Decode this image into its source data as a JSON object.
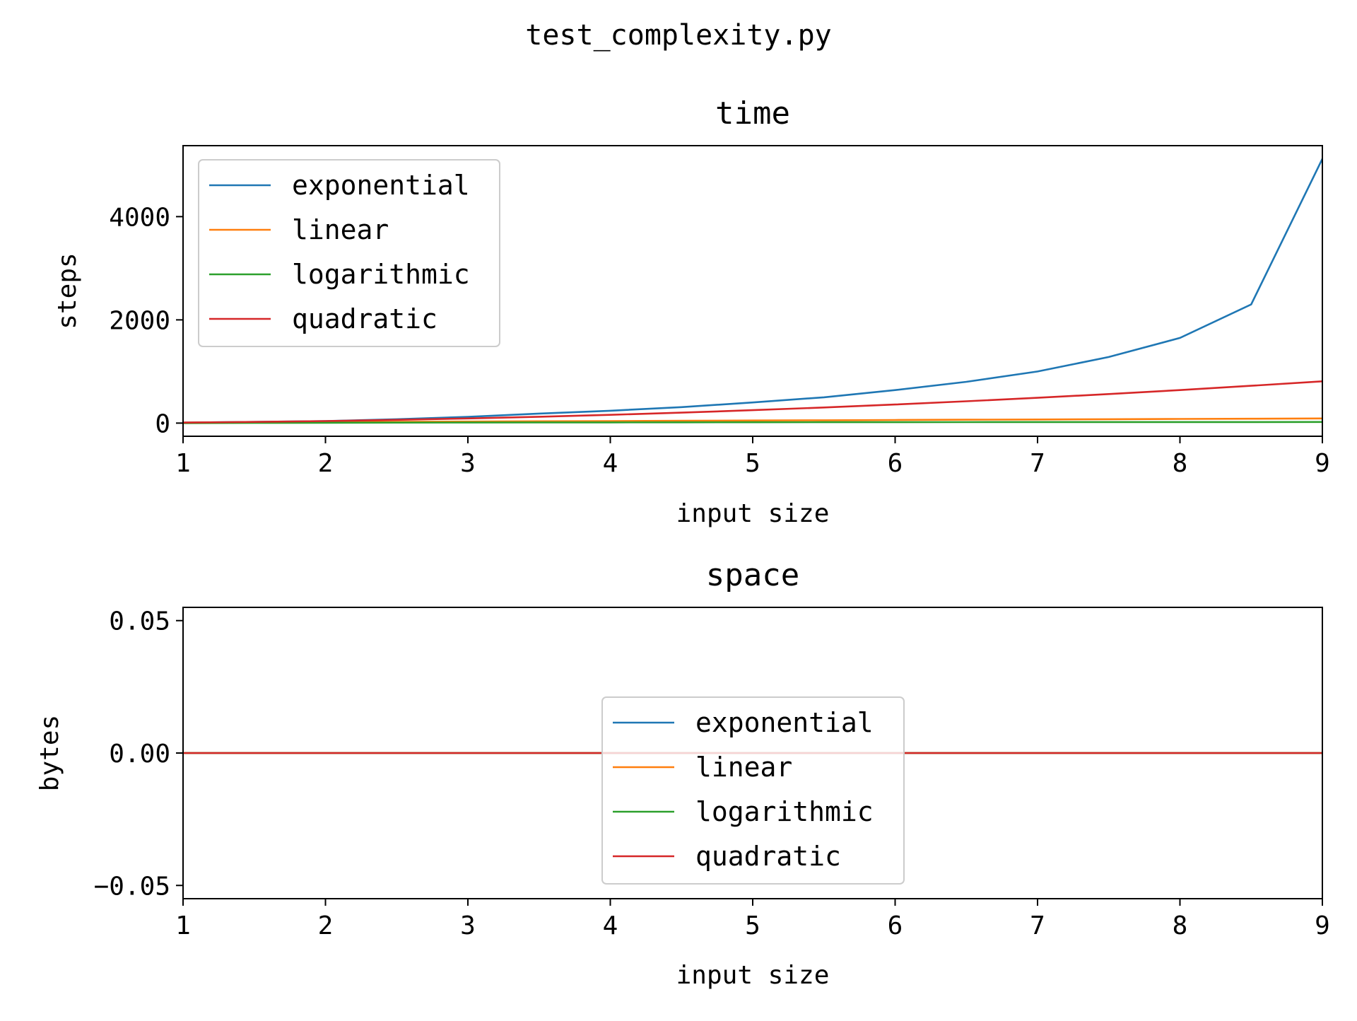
{
  "figure_title": "test_complexity.py",
  "chart_data": [
    {
      "type": "line",
      "title": "time",
      "xlabel": "input size",
      "ylabel": "steps",
      "xlim": [
        1,
        9
      ],
      "ylim": [
        -255,
        5375
      ],
      "x_ticks": [
        1,
        2,
        3,
        4,
        5,
        6,
        7,
        8,
        9
      ],
      "x_tick_labels": [
        "1",
        "2",
        "3",
        "4",
        "5",
        "6",
        "7",
        "8",
        "9"
      ],
      "y_ticks": [
        0,
        2000,
        4000
      ],
      "y_tick_labels": [
        "0",
        "2000",
        "4000"
      ],
      "grid": false,
      "legend_position": "upper-left",
      "x": [
        1,
        1.5,
        2,
        2.5,
        3,
        3.5,
        4,
        4.5,
        5,
        5.5,
        6,
        6.5,
        7,
        7.5,
        8,
        8.5,
        9
      ],
      "series": [
        {
          "name": "exponential",
          "color": "#1f77b4",
          "values": [
            10,
            23,
            40,
            75,
            120,
            185,
            240,
            310,
            400,
            500,
            640,
            800,
            1000,
            1280,
            1650,
            2300,
            5120
          ]
        },
        {
          "name": "linear",
          "color": "#ff7f0e",
          "values": [
            10,
            15,
            20,
            25,
            30,
            35,
            40,
            45,
            50,
            55,
            60,
            65,
            70,
            75,
            80,
            85,
            90
          ]
        },
        {
          "name": "logarithmic",
          "color": "#2ca02c",
          "values": [
            0,
            4,
            7,
            9,
            11,
            13,
            14,
            15,
            16,
            17,
            18,
            19,
            20,
            20,
            21,
            21,
            22
          ]
        },
        {
          "name": "quadratic",
          "color": "#d62728",
          "values": [
            10,
            23,
            40,
            63,
            90,
            123,
            160,
            203,
            250,
            303,
            360,
            423,
            490,
            563,
            640,
            723,
            810
          ]
        }
      ]
    },
    {
      "type": "line",
      "title": "space",
      "xlabel": "input size",
      "ylabel": "bytes",
      "xlim": [
        1,
        9
      ],
      "ylim": [
        -0.055,
        0.055
      ],
      "x_ticks": [
        1,
        2,
        3,
        4,
        5,
        6,
        7,
        8,
        9
      ],
      "x_tick_labels": [
        "1",
        "2",
        "3",
        "4",
        "5",
        "6",
        "7",
        "8",
        "9"
      ],
      "y_ticks": [
        -0.05,
        0,
        0.05
      ],
      "y_tick_labels": [
        "−0.05",
        "0.00",
        "0.05"
      ],
      "grid": false,
      "legend_position": "center",
      "x": [
        1,
        9
      ],
      "series": [
        {
          "name": "exponential",
          "color": "#1f77b4",
          "values": [
            0,
            0
          ]
        },
        {
          "name": "linear",
          "color": "#ff7f0e",
          "values": [
            0,
            0
          ]
        },
        {
          "name": "logarithmic",
          "color": "#2ca02c",
          "values": [
            0,
            0
          ]
        },
        {
          "name": "quadratic",
          "color": "#d62728",
          "values": [
            0,
            0
          ]
        }
      ]
    }
  ]
}
